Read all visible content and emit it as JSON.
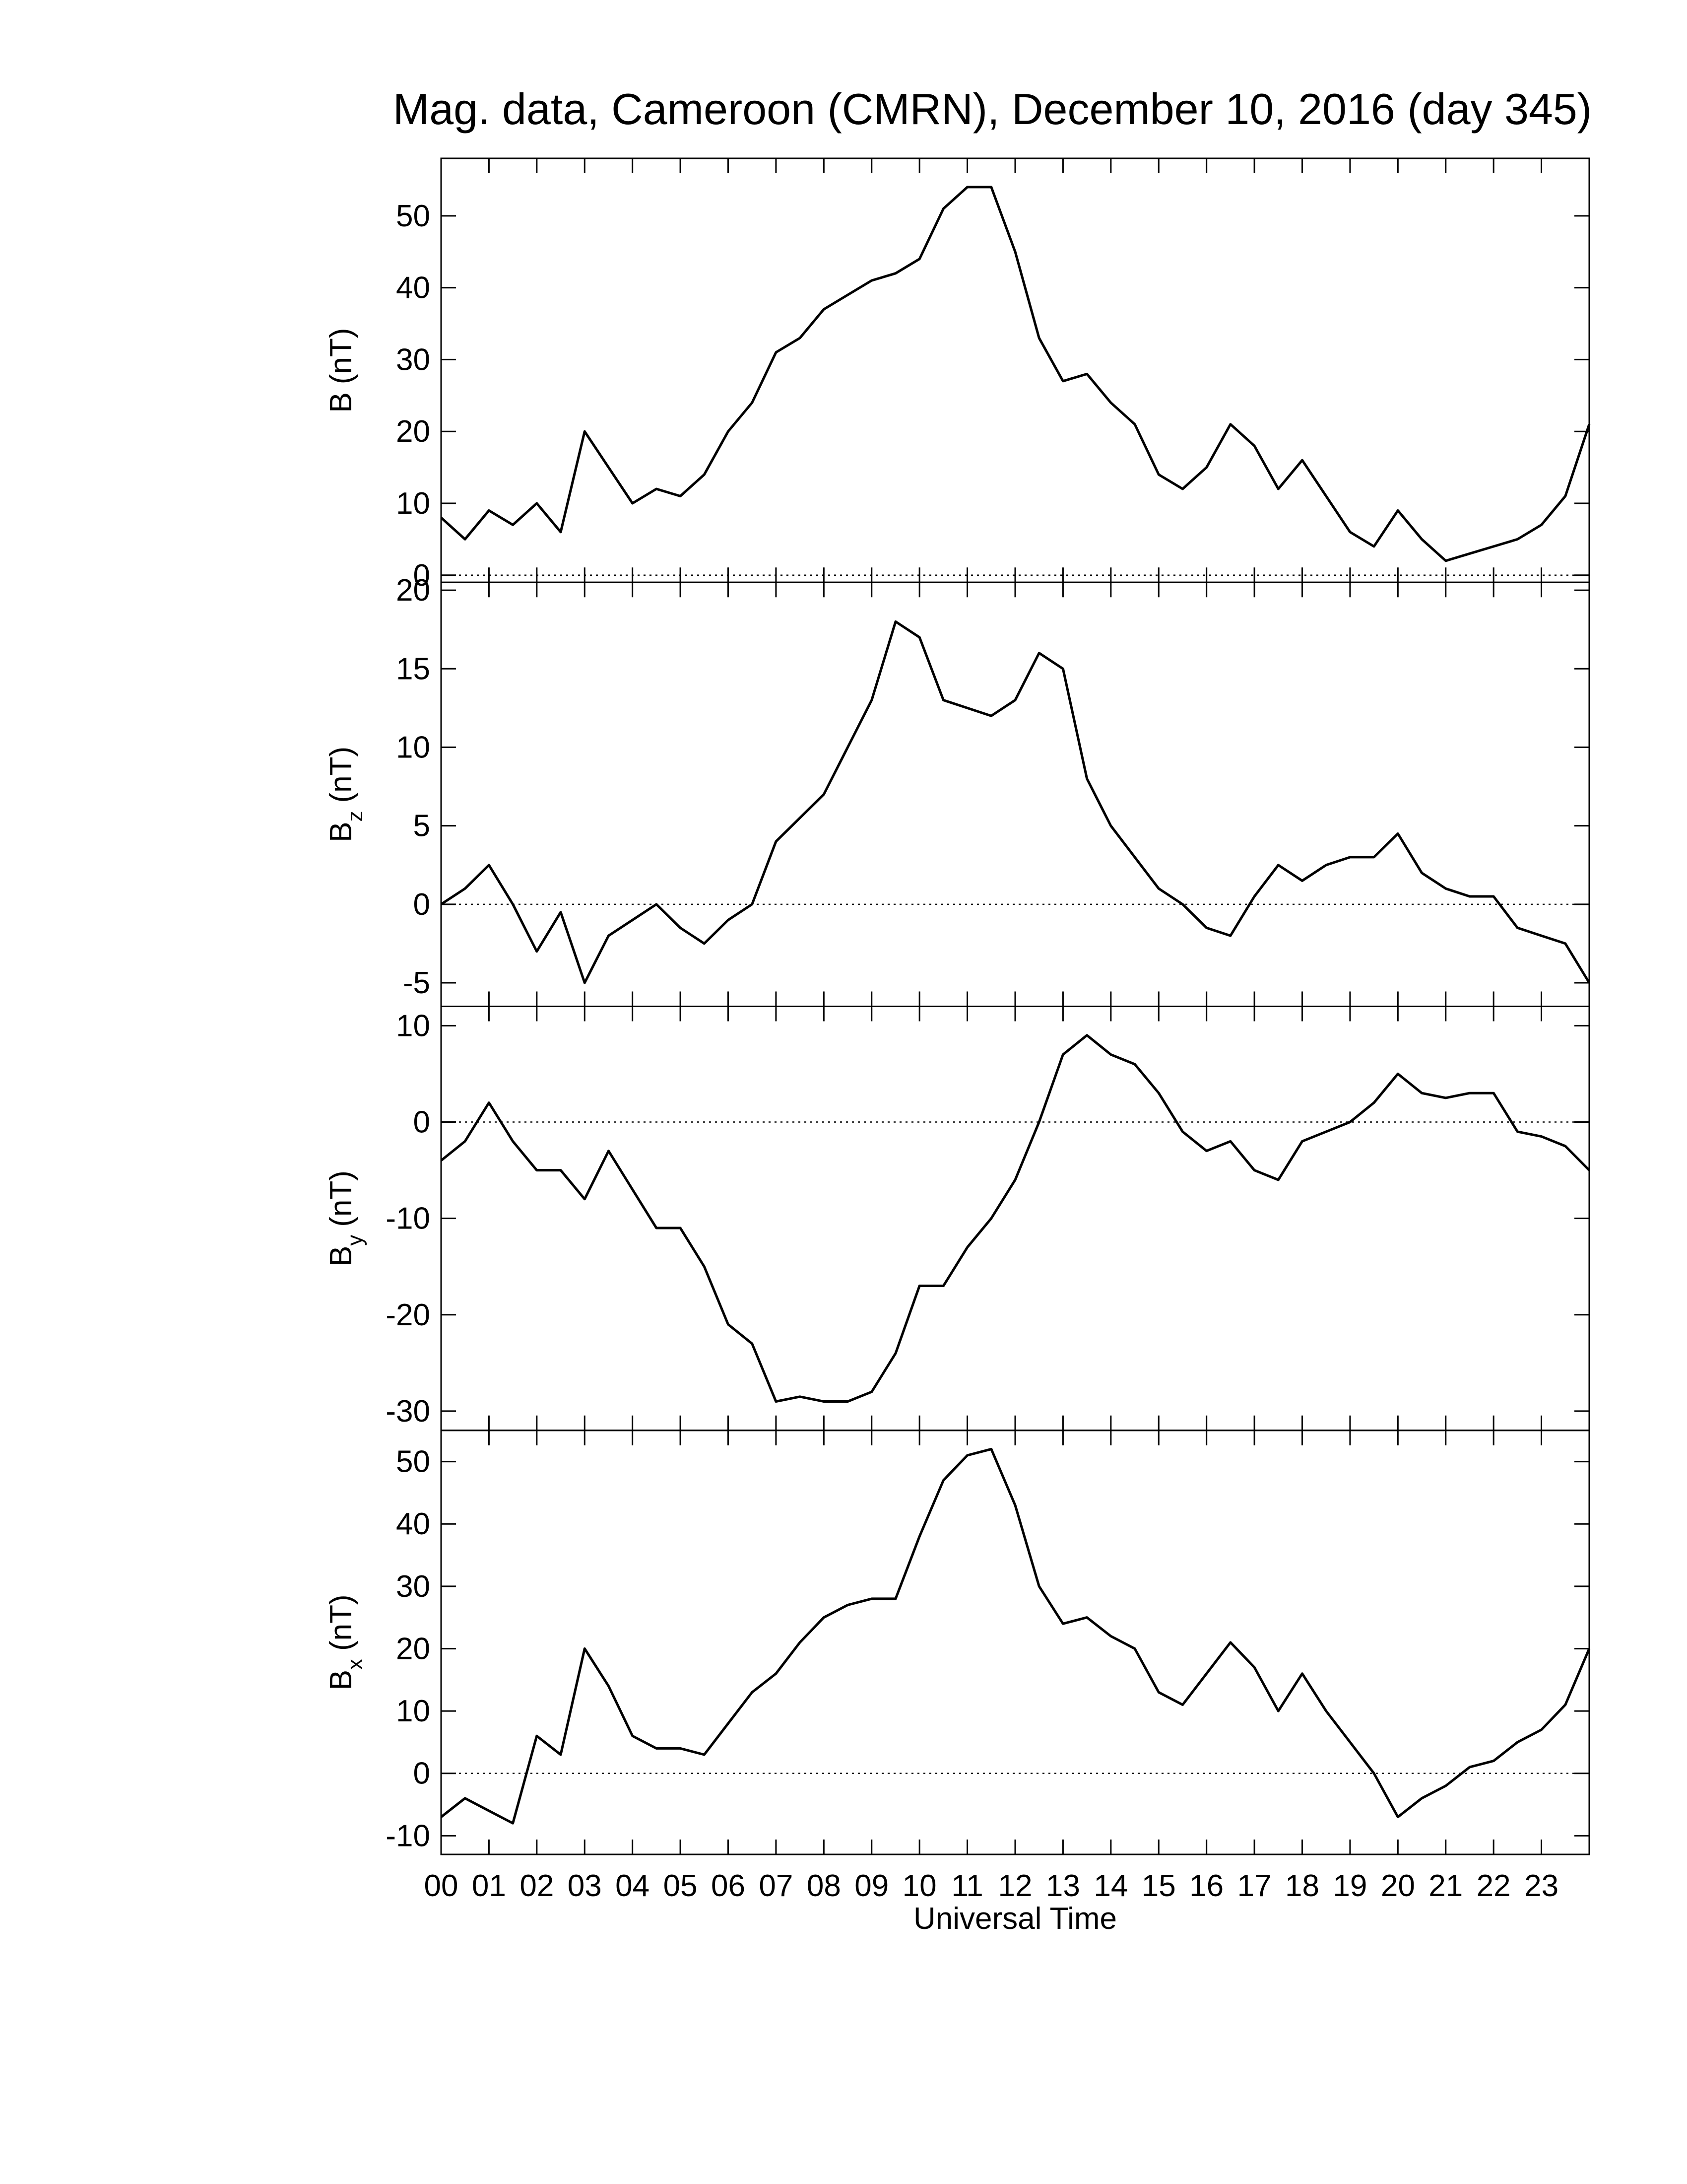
{
  "title": "Mag. data, Cameroon (CMRN), December 10, 2016 (day 345)",
  "chart_data": [
    {
      "type": "line",
      "ylabel": {
        "symbol": "B",
        "unit": "(nT)"
      },
      "x": [
        0,
        0.5,
        1,
        1.5,
        2,
        2.5,
        3,
        3.5,
        4,
        4.5,
        5,
        5.5,
        6,
        6.5,
        7,
        7.5,
        8,
        8.5,
        9,
        9.5,
        10,
        10.5,
        11,
        11.5,
        12,
        12.5,
        13,
        13.5,
        14,
        14.5,
        15,
        15.5,
        16,
        16.5,
        17,
        17.5,
        18,
        18.5,
        19,
        19.5,
        20,
        20.5,
        21,
        21.5,
        22,
        22.5,
        23,
        23.5,
        24
      ],
      "values": [
        8,
        5,
        9,
        7,
        10,
        6,
        20,
        15,
        10,
        12,
        11,
        14,
        20,
        24,
        31,
        33,
        37,
        39,
        41,
        42,
        44,
        51,
        54,
        54,
        45,
        33,
        27,
        28,
        24,
        21,
        14,
        12,
        15,
        21,
        18,
        12,
        16,
        11,
        6,
        4,
        9,
        5,
        2,
        3,
        4,
        5,
        7,
        11,
        21
      ],
      "color": "#000000",
      "xlim": [
        0,
        24
      ],
      "ylim": [
        -1,
        58
      ],
      "yticks": [
        0,
        10,
        20,
        30,
        40,
        50
      ],
      "zero_line": true
    },
    {
      "type": "line",
      "ylabel": {
        "symbol": "B",
        "subscript": "z",
        "unit": "(nT)"
      },
      "x": [
        0,
        0.5,
        1,
        1.5,
        2,
        2.5,
        3,
        3.5,
        4,
        4.5,
        5,
        5.5,
        6,
        6.5,
        7,
        7.5,
        8,
        8.5,
        9,
        9.5,
        10,
        10.5,
        11,
        11.5,
        12,
        12.5,
        13,
        13.5,
        14,
        14.5,
        15,
        15.5,
        16,
        16.5,
        17,
        17.5,
        18,
        18.5,
        19,
        19.5,
        20,
        20.5,
        21,
        21.5,
        22,
        22.5,
        23,
        23.5,
        24
      ],
      "values": [
        0,
        1,
        2.5,
        0,
        -3,
        -0.5,
        -5,
        -2,
        -1,
        0,
        -1.5,
        -2.5,
        -1,
        0,
        4,
        5.5,
        7,
        10,
        13,
        18,
        17,
        13,
        12.5,
        12,
        13,
        16,
        15,
        8,
        5,
        3,
        1,
        0,
        -1.5,
        -2,
        0.5,
        2.5,
        1.5,
        2.5,
        3,
        3,
        4.5,
        2,
        1,
        0.5,
        0.5,
        -1.5,
        -2,
        -2.5,
        -5
      ],
      "color": "#000000",
      "xlim": [
        0,
        24
      ],
      "ylim": [
        -6.5,
        20.5
      ],
      "yticks": [
        -5,
        0,
        5,
        10,
        15,
        20
      ],
      "zero_line": true
    },
    {
      "type": "line",
      "ylabel": {
        "symbol": "B",
        "subscript": "y",
        "unit": "(nT)"
      },
      "x": [
        0,
        0.5,
        1,
        1.5,
        2,
        2.5,
        3,
        3.5,
        4,
        4.5,
        5,
        5.5,
        6,
        6.5,
        7,
        7.5,
        8,
        8.5,
        9,
        9.5,
        10,
        10.5,
        11,
        11.5,
        12,
        12.5,
        13,
        13.5,
        14,
        14.5,
        15,
        15.5,
        16,
        16.5,
        17,
        17.5,
        18,
        18.5,
        19,
        19.5,
        20,
        20.5,
        21,
        21.5,
        22,
        22.5,
        23,
        23.5,
        24
      ],
      "values": [
        -4,
        -2,
        2,
        -2,
        -5,
        -5,
        -8,
        -3,
        -7,
        -11,
        -11,
        -15,
        -21,
        -23,
        -29,
        -28.5,
        -29,
        -29,
        -28,
        -24,
        -17,
        -17,
        -13,
        -10,
        -6,
        0,
        7,
        9,
        7,
        6,
        3,
        -1,
        -3,
        -2,
        -5,
        -6,
        -2,
        -1,
        0,
        2,
        5,
        3,
        2.5,
        3,
        3,
        -1,
        -1.5,
        -2.5,
        -5
      ],
      "color": "#000000",
      "xlim": [
        0,
        24
      ],
      "ylim": [
        -32,
        12
      ],
      "yticks": [
        -30,
        -20,
        -10,
        0,
        10
      ],
      "zero_line": true
    },
    {
      "type": "line",
      "ylabel": {
        "symbol": "B",
        "subscript": "x",
        "unit": "(nT)"
      },
      "xlabel": "Universal Time",
      "x": [
        0,
        0.5,
        1,
        1.5,
        2,
        2.5,
        3,
        3.5,
        4,
        4.5,
        5,
        5.5,
        6,
        6.5,
        7,
        7.5,
        8,
        8.5,
        9,
        9.5,
        10,
        10.5,
        11,
        11.5,
        12,
        12.5,
        13,
        13.5,
        14,
        14.5,
        15,
        15.5,
        16,
        16.5,
        17,
        17.5,
        18,
        18.5,
        19,
        19.5,
        20,
        20.5,
        21,
        21.5,
        22,
        22.5,
        23,
        23.5,
        24
      ],
      "values": [
        -7,
        -4,
        -6,
        -8,
        6,
        3,
        20,
        14,
        6,
        4,
        4,
        3,
        8,
        13,
        16,
        21,
        25,
        27,
        28,
        28,
        38,
        47,
        51,
        52,
        43,
        30,
        24,
        25,
        22,
        20,
        13,
        11,
        16,
        21,
        17,
        10,
        16,
        10,
        5,
        0,
        -7,
        -4,
        -2,
        1,
        2,
        5,
        7,
        11,
        20
      ],
      "color": "#000000",
      "xlim": [
        0,
        24
      ],
      "ylim": [
        -13,
        55
      ],
      "yticks": [
        -10,
        0,
        10,
        20,
        30,
        40,
        50
      ],
      "zero_line": true,
      "xticks": [
        {
          "value": 0,
          "label": "00"
        },
        {
          "value": 1,
          "label": "01"
        },
        {
          "value": 2,
          "label": "02"
        },
        {
          "value": 3,
          "label": "03"
        },
        {
          "value": 4,
          "label": "04"
        },
        {
          "value": 5,
          "label": "05"
        },
        {
          "value": 6,
          "label": "06"
        },
        {
          "value": 7,
          "label": "07"
        },
        {
          "value": 8,
          "label": "08"
        },
        {
          "value": 9,
          "label": "09"
        },
        10,
        11,
        12,
        13,
        14,
        15,
        16,
        17,
        18,
        19,
        20,
        21,
        22,
        23
      ]
    }
  ]
}
